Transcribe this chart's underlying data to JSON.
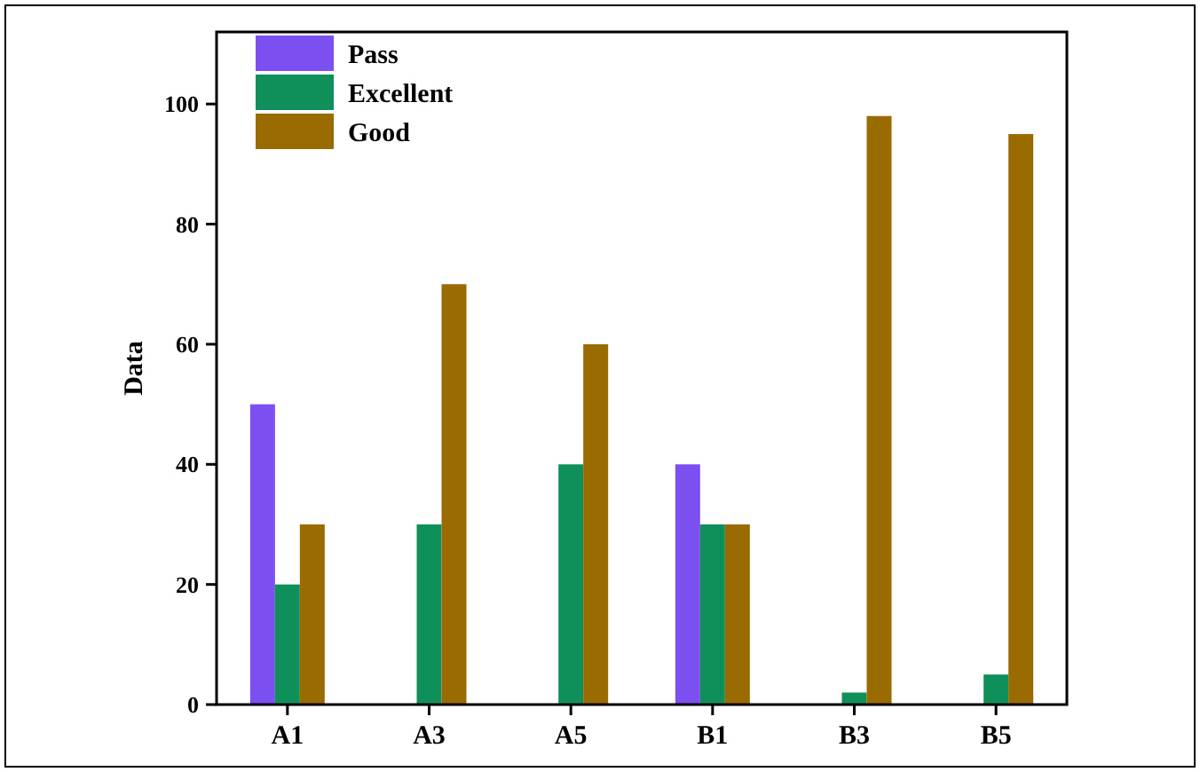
{
  "chart_data": {
    "type": "bar",
    "ylabel": "Data",
    "categories": [
      "A1",
      "A3",
      "A5",
      "B1",
      "B3",
      "B5"
    ],
    "series": [
      {
        "name": "Pass",
        "color": "#7b4ff0",
        "values": [
          50,
          0,
          0,
          40,
          0,
          0
        ]
      },
      {
        "name": "Excellent",
        "color": "#0f8f5a",
        "values": [
          20,
          30,
          40,
          30,
          2,
          5
        ]
      },
      {
        "name": "Good",
        "color": "#9a6b00",
        "values": [
          30,
          70,
          60,
          30,
          98,
          95
        ]
      }
    ],
    "ylim": [
      0,
      112
    ],
    "yticks": [
      0,
      20,
      40,
      60,
      80,
      100
    ],
    "grid": false,
    "legend": "top left"
  }
}
